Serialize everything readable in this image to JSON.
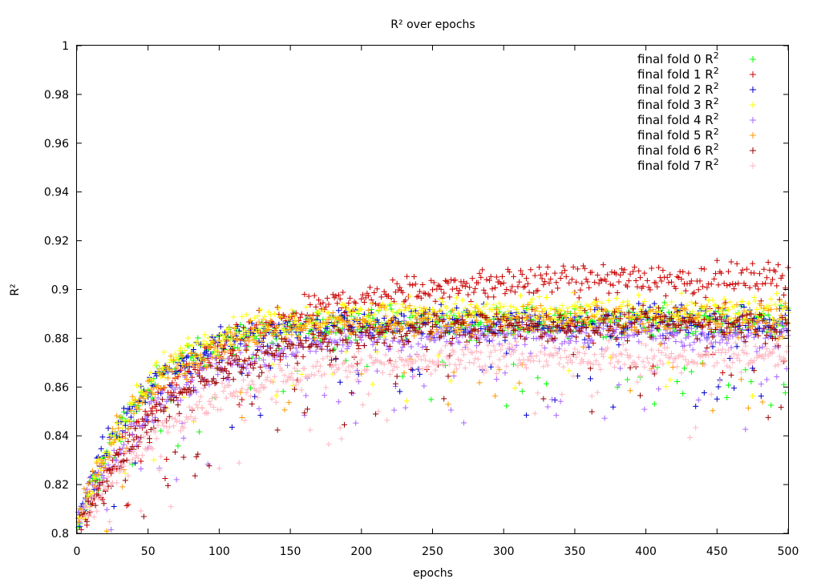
{
  "chart_data": {
    "type": "scatter",
    "title": "R² over epochs",
    "xlabel": "epochs",
    "ylabel": "R²",
    "xlim": [
      0,
      500
    ],
    "ylim": [
      0.8,
      1.0
    ],
    "x_ticks": [
      0,
      50,
      100,
      150,
      200,
      250,
      300,
      350,
      400,
      450,
      500
    ],
    "y_ticks": [
      0.8,
      0.82,
      0.84,
      0.86,
      0.88,
      0.9,
      0.92,
      0.94,
      0.96,
      0.98,
      1.0
    ],
    "marker": "+",
    "grid": false,
    "legend_position": "top-right",
    "series": [
      {
        "name": "final fold 0 R",
        "superscript": "2",
        "color": "#00ff00",
        "curve": {
          "plateau": 0.887,
          "start": 0.8,
          "tau": 45
        },
        "samples": [
          [
            10,
            0.81
          ],
          [
            50,
            0.862
          ],
          [
            100,
            0.875
          ],
          [
            150,
            0.882
          ],
          [
            200,
            0.885
          ],
          [
            250,
            0.886
          ],
          [
            300,
            0.887
          ],
          [
            350,
            0.888
          ],
          [
            400,
            0.888
          ],
          [
            450,
            0.889
          ],
          [
            500,
            0.888
          ]
        ]
      },
      {
        "name": "final fold 1 R",
        "superscript": "2",
        "color": "#cc0000",
        "curve": {
          "plateau": 0.905,
          "start": 0.8,
          "tau": 80
        },
        "samples": [
          [
            10,
            0.81
          ],
          [
            50,
            0.872
          ],
          [
            100,
            0.884
          ],
          [
            150,
            0.89
          ],
          [
            200,
            0.896
          ],
          [
            250,
            0.9
          ],
          [
            300,
            0.902
          ],
          [
            350,
            0.903
          ],
          [
            400,
            0.904
          ],
          [
            450,
            0.905
          ],
          [
            500,
            0.905
          ]
        ]
      },
      {
        "name": "final fold 2 R",
        "superscript": "2",
        "color": "#0000cc",
        "curve": {
          "plateau": 0.887,
          "start": 0.805,
          "tau": 45
        },
        "samples": [
          [
            10,
            0.815
          ],
          [
            50,
            0.864
          ],
          [
            100,
            0.876
          ],
          [
            150,
            0.882
          ],
          [
            200,
            0.885
          ],
          [
            250,
            0.886
          ],
          [
            300,
            0.887
          ],
          [
            350,
            0.887
          ],
          [
            400,
            0.888
          ],
          [
            450,
            0.888
          ],
          [
            500,
            0.887
          ]
        ]
      },
      {
        "name": "final fold 3 R",
        "superscript": "2",
        "color": "#ffff00",
        "curve": {
          "plateau": 0.891,
          "start": 0.8,
          "tau": 45
        },
        "samples": [
          [
            10,
            0.81
          ],
          [
            50,
            0.866
          ],
          [
            100,
            0.878
          ],
          [
            150,
            0.884
          ],
          [
            200,
            0.887
          ],
          [
            250,
            0.889
          ],
          [
            300,
            0.89
          ],
          [
            350,
            0.891
          ],
          [
            400,
            0.891
          ],
          [
            450,
            0.892
          ],
          [
            500,
            0.892
          ]
        ]
      },
      {
        "name": "final fold 4 R",
        "superscript": "2",
        "color": "#aa66ff",
        "curve": {
          "plateau": 0.882,
          "start": 0.805,
          "tau": 60
        },
        "samples": [
          [
            10,
            0.815
          ],
          [
            50,
            0.852
          ],
          [
            100,
            0.866
          ],
          [
            150,
            0.873
          ],
          [
            200,
            0.877
          ],
          [
            250,
            0.879
          ],
          [
            300,
            0.88
          ],
          [
            350,
            0.881
          ],
          [
            400,
            0.882
          ],
          [
            450,
            0.882
          ],
          [
            500,
            0.882
          ]
        ]
      },
      {
        "name": "final fold 5 R",
        "superscript": "2",
        "color": "#ff9900",
        "curve": {
          "plateau": 0.888,
          "start": 0.805,
          "tau": 50
        },
        "samples": [
          [
            10,
            0.815
          ],
          [
            50,
            0.86
          ],
          [
            100,
            0.874
          ],
          [
            150,
            0.881
          ],
          [
            200,
            0.885
          ],
          [
            250,
            0.886
          ],
          [
            300,
            0.887
          ],
          [
            350,
            0.888
          ],
          [
            400,
            0.888
          ],
          [
            450,
            0.889
          ],
          [
            500,
            0.889
          ]
        ]
      },
      {
        "name": "final fold 6 R",
        "superscript": "2",
        "color": "#990000",
        "curve": {
          "plateau": 0.886,
          "start": 0.8,
          "tau": 70
        },
        "samples": [
          [
            10,
            0.81
          ],
          [
            50,
            0.855
          ],
          [
            100,
            0.867
          ],
          [
            150,
            0.875
          ],
          [
            200,
            0.879
          ],
          [
            250,
            0.882
          ],
          [
            300,
            0.884
          ],
          [
            350,
            0.885
          ],
          [
            400,
            0.886
          ],
          [
            450,
            0.886
          ],
          [
            500,
            0.887
          ]
        ]
      },
      {
        "name": "final fold 7 R",
        "superscript": "2",
        "color": "#ffb6c1",
        "curve": {
          "plateau": 0.873,
          "start": 0.8,
          "tau": 70
        },
        "samples": [
          [
            10,
            0.81
          ],
          [
            50,
            0.842
          ],
          [
            100,
            0.856
          ],
          [
            150,
            0.863
          ],
          [
            200,
            0.867
          ],
          [
            250,
            0.869
          ],
          [
            300,
            0.871
          ],
          [
            350,
            0.872
          ],
          [
            400,
            0.873
          ],
          [
            450,
            0.873
          ],
          [
            500,
            0.874
          ]
        ]
      }
    ]
  }
}
